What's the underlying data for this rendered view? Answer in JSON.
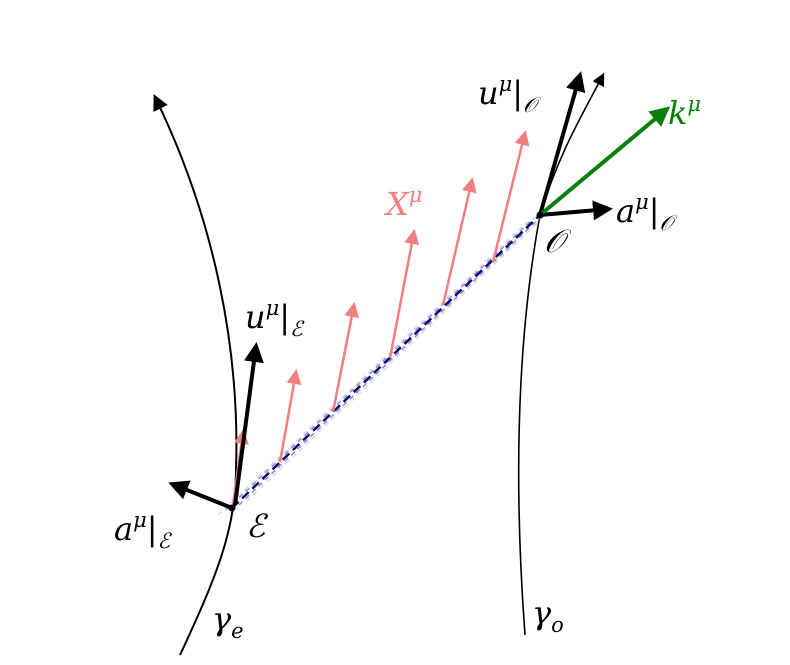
{
  "labels": {
    "u_observer": {
      "base": "u",
      "sup": "μ",
      "sub": "𝒪"
    },
    "k": {
      "base": "k",
      "sup": "μ"
    },
    "X": {
      "base": "X",
      "sup": "μ"
    },
    "a_observer": {
      "base": "a",
      "sup": "μ",
      "sub": "𝒪"
    },
    "observer_point": "𝒪",
    "u_emitter": {
      "base": "u",
      "sup": "μ",
      "sub": "ℰ"
    },
    "a_emitter": {
      "base": "a",
      "sup": "μ",
      "sub": "ℰ"
    },
    "emitter_point": "ℰ",
    "gamma_e": {
      "base": "γ",
      "sub": "e"
    },
    "gamma_o": {
      "base": "γ",
      "sub": "o"
    }
  }
}
